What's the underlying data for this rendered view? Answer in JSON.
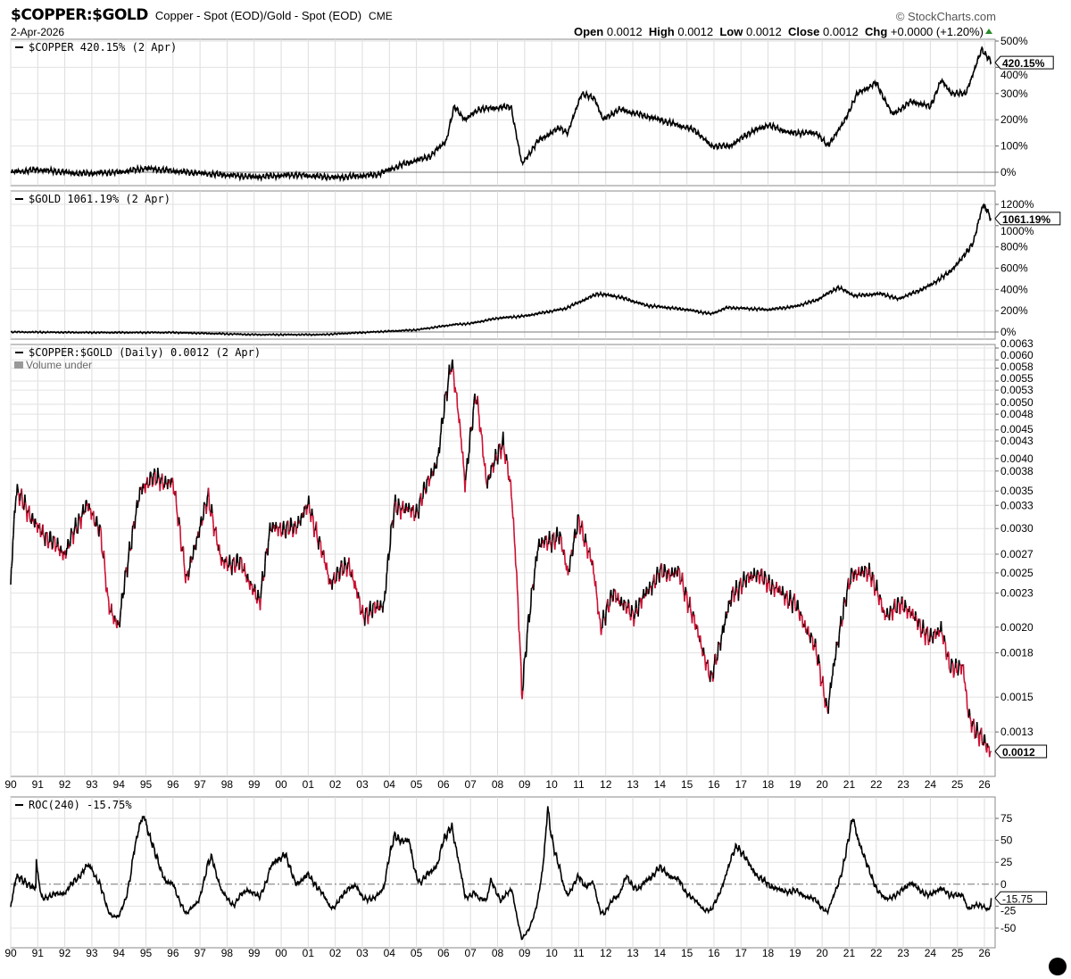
{
  "header": {
    "title": "$COPPER:$GOLD",
    "subtitle": "Copper - Spot (EOD)/Gold - Spot (EOD)",
    "exchange": "CME",
    "date": "2-Apr-2026",
    "brand": "© StockCharts.com",
    "open_label": "Open",
    "open": "0.0012",
    "high_label": "High",
    "high": "0.0012",
    "low_label": "Low",
    "low": "0.0012",
    "close_label": "Close",
    "close": "0.0012",
    "chg_label": "Chg",
    "chg": "+0.0000 (+1.20%)",
    "up_color": "#2a8a2a"
  },
  "chart_data": [
    {
      "type": "line",
      "panel": "copper",
      "legend": "$COPPER 420.15% (2 Apr)",
      "last_value": "420.15%",
      "ylim": [
        -50,
        500
      ],
      "yticks": [
        "500%",
        "400%",
        "300%",
        "200%",
        "100%",
        "0%"
      ],
      "ytick_values": [
        500,
        400,
        300,
        200,
        100,
        0
      ],
      "points": [
        [
          1990,
          0
        ],
        [
          1991,
          10
        ],
        [
          1992.5,
          -5
        ],
        [
          1994,
          0
        ],
        [
          1995,
          15
        ],
        [
          1996.5,
          0
        ],
        [
          1999,
          -18
        ],
        [
          2000.5,
          -10
        ],
        [
          2002,
          -20
        ],
        [
          2003.5,
          -10
        ],
        [
          2004.5,
          30
        ],
        [
          2005.5,
          60
        ],
        [
          2006.1,
          120
        ],
        [
          2006.4,
          250
        ],
        [
          2006.8,
          200
        ],
        [
          2007.3,
          240
        ],
        [
          2008.5,
          250
        ],
        [
          2008.9,
          30
        ],
        [
          2009.5,
          120
        ],
        [
          2010.3,
          170
        ],
        [
          2010.6,
          150
        ],
        [
          2011.1,
          300
        ],
        [
          2011.6,
          280
        ],
        [
          2011.9,
          200
        ],
        [
          2012.5,
          240
        ],
        [
          2014,
          200
        ],
        [
          2015.3,
          160
        ],
        [
          2015.9,
          100
        ],
        [
          2016.6,
          100
        ],
        [
          2017.3,
          150
        ],
        [
          2018,
          180
        ],
        [
          2018.8,
          150
        ],
        [
          2019.8,
          150
        ],
        [
          2020.2,
          100
        ],
        [
          2020.8,
          190
        ],
        [
          2021.3,
          300
        ],
        [
          2022,
          340
        ],
        [
          2022.6,
          220
        ],
        [
          2023.3,
          270
        ],
        [
          2024,
          250
        ],
        [
          2024.4,
          350
        ],
        [
          2024.8,
          300
        ],
        [
          2025.3,
          300
        ],
        [
          2025.6,
          380
        ],
        [
          2025.9,
          470
        ],
        [
          2026.25,
          420
        ]
      ]
    },
    {
      "type": "line",
      "panel": "gold",
      "legend": "$GOLD 1061.19% (2 Apr)",
      "last_value": "1061.19%",
      "ylim": [
        -60,
        1250
      ],
      "yticks": [
        "1200%",
        "1000%",
        "800%",
        "600%",
        "400%",
        "200%",
        "0%"
      ],
      "ytick_values": [
        1200,
        1000,
        800,
        600,
        400,
        200,
        0
      ],
      "points": [
        [
          1990,
          0
        ],
        [
          1993,
          -5
        ],
        [
          1996,
          -5
        ],
        [
          1999,
          -25
        ],
        [
          2001.5,
          -25
        ],
        [
          2003,
          -5
        ],
        [
          2005,
          20
        ],
        [
          2006.4,
          70
        ],
        [
          2007,
          80
        ],
        [
          2008,
          130
        ],
        [
          2009,
          150
        ],
        [
          2010.5,
          220
        ],
        [
          2011.7,
          360
        ],
        [
          2012.5,
          330
        ],
        [
          2013.5,
          250
        ],
        [
          2015,
          210
        ],
        [
          2015.9,
          170
        ],
        [
          2016.5,
          230
        ],
        [
          2018,
          210
        ],
        [
          2019,
          240
        ],
        [
          2019.8,
          300
        ],
        [
          2020.6,
          420
        ],
        [
          2021.2,
          340
        ],
        [
          2022.2,
          360
        ],
        [
          2022.8,
          310
        ],
        [
          2023.5,
          380
        ],
        [
          2024,
          440
        ],
        [
          2024.7,
          560
        ],
        [
          2025.2,
          700
        ],
        [
          2025.6,
          850
        ],
        [
          2025.95,
          1200
        ],
        [
          2026.1,
          1150
        ],
        [
          2026.25,
          1061
        ]
      ]
    },
    {
      "type": "line",
      "panel": "ratio",
      "legend": "$COPPER:$GOLD (Daily) 0.0012 (2 Apr)",
      "sub_legend": "Volume under",
      "last_value": "0.0012",
      "scale": "log",
      "ylim": [
        0.00115,
        0.0064
      ],
      "yticks": [
        "0.0063",
        "0.0060",
        "0.0058",
        "0.0055",
        "0.0053",
        "0.0050",
        "0.0048",
        "0.0045",
        "0.0043",
        "0.0040",
        "0.0038",
        "0.0035",
        "0.0033",
        "0.0030",
        "0.0027",
        "0.0025",
        "0.0023",
        "0.0020",
        "0.0018",
        "0.0015",
        "0.0013"
      ],
      "ytick_values": [
        0.0063,
        0.006,
        0.0058,
        0.0055,
        0.0053,
        0.005,
        0.0048,
        0.0045,
        0.0043,
        0.004,
        0.0038,
        0.0035,
        0.0033,
        0.003,
        0.0027,
        0.0025,
        0.0023,
        0.002,
        0.0018,
        0.0015,
        0.0013
      ],
      "up_color": "#000000",
      "down_color": "#cc1133",
      "points": [
        [
          1990,
          0.0024
        ],
        [
          1990.2,
          0.0035
        ],
        [
          1991,
          0.003
        ],
        [
          1992,
          0.0027
        ],
        [
          1992.8,
          0.0033
        ],
        [
          1993.3,
          0.003
        ],
        [
          1993.6,
          0.0022
        ],
        [
          1994,
          0.002
        ],
        [
          1994.8,
          0.0035
        ],
        [
          1995.2,
          0.0037
        ],
        [
          1996,
          0.0036
        ],
        [
          1996.5,
          0.0024
        ],
        [
          1997.3,
          0.0034
        ],
        [
          1997.8,
          0.0026
        ],
        [
          1998.5,
          0.0026
        ],
        [
          1999.2,
          0.0022
        ],
        [
          1999.6,
          0.003
        ],
        [
          2000.5,
          0.003
        ],
        [
          2001,
          0.0033
        ],
        [
          2001.8,
          0.0024
        ],
        [
          2002.5,
          0.0026
        ],
        [
          2003,
          0.0021
        ],
        [
          2003.8,
          0.0022
        ],
        [
          2004.2,
          0.0033
        ],
        [
          2005,
          0.0032
        ],
        [
          2005.8,
          0.004
        ],
        [
          2006.3,
          0.006
        ],
        [
          2006.8,
          0.0036
        ],
        [
          2007.2,
          0.0052
        ],
        [
          2007.6,
          0.0036
        ],
        [
          2008.2,
          0.0043
        ],
        [
          2008.5,
          0.0035
        ],
        [
          2008.9,
          0.0015
        ],
        [
          2009.5,
          0.0028
        ],
        [
          2010.3,
          0.0029
        ],
        [
          2010.6,
          0.0025
        ],
        [
          2011,
          0.0031
        ],
        [
          2011.5,
          0.0026
        ],
        [
          2011.8,
          0.002
        ],
        [
          2012.3,
          0.0023
        ],
        [
          2013,
          0.0021
        ],
        [
          2014,
          0.0025
        ],
        [
          2014.7,
          0.0025
        ],
        [
          2015.2,
          0.0021
        ],
        [
          2015.9,
          0.0016
        ],
        [
          2016.7,
          0.0023
        ],
        [
          2017.5,
          0.0025
        ],
        [
          2018.5,
          0.0023
        ],
        [
          2019,
          0.0022
        ],
        [
          2019.8,
          0.0018
        ],
        [
          2020.2,
          0.0014
        ],
        [
          2020.5,
          0.0018
        ],
        [
          2021.1,
          0.0025
        ],
        [
          2021.8,
          0.0025
        ],
        [
          2022.3,
          0.0021
        ],
        [
          2023,
          0.0022
        ],
        [
          2024,
          0.0019
        ],
        [
          2024.4,
          0.002
        ],
        [
          2024.7,
          0.0017
        ],
        [
          2025.2,
          0.0017
        ],
        [
          2025.4,
          0.0014
        ],
        [
          2025.7,
          0.0013
        ],
        [
          2026.25,
          0.0012
        ]
      ]
    },
    {
      "type": "line",
      "panel": "roc",
      "legend": "ROC(240) -15.75%",
      "last_value": "-15.75",
      "ylim": [
        -62,
        95
      ],
      "yticks": [
        "75",
        "50",
        "25",
        "0",
        "-25",
        "-50"
      ],
      "ytick_values": [
        75,
        50,
        25,
        0,
        -25,
        -50
      ],
      "zero_line": "dash-dot"
    }
  ],
  "x_axis": {
    "labels": [
      "90",
      "91",
      "92",
      "93",
      "94",
      "95",
      "96",
      "97",
      "98",
      "99",
      "00",
      "01",
      "02",
      "03",
      "04",
      "05",
      "06",
      "07",
      "08",
      "09",
      "10",
      "11",
      "12",
      "13",
      "14",
      "15",
      "16",
      "17",
      "18",
      "19",
      "20",
      "21",
      "22",
      "23",
      "24",
      "25",
      "26"
    ],
    "start_year": 1990,
    "end_year": 2026.25
  }
}
